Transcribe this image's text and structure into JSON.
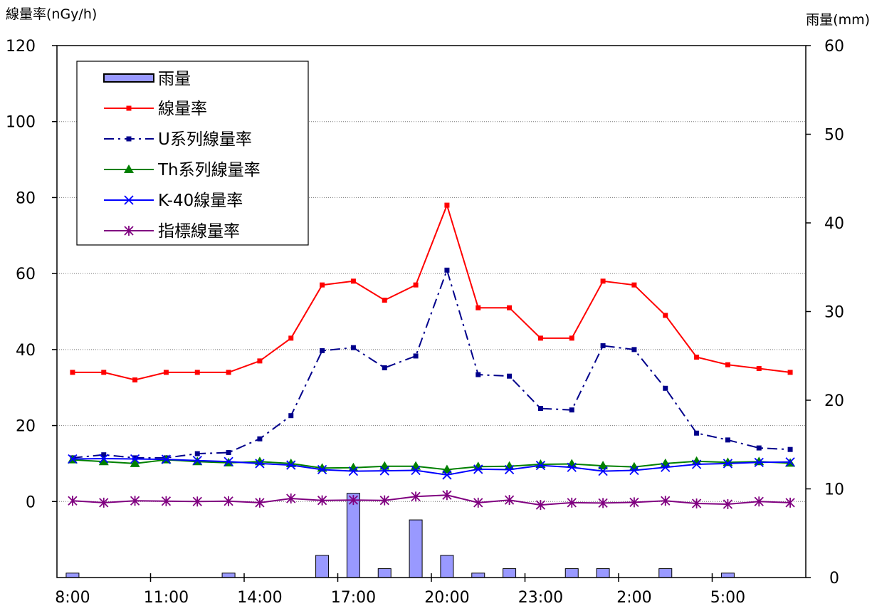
{
  "chart_data": {
    "type": "line",
    "ylabel_left": "線量率(nGy/h)",
    "ylabel_right": "雨量(mm)",
    "left_ticks": [
      "120",
      "100",
      "80",
      "60",
      "40",
      "20",
      "0"
    ],
    "right_ticks": [
      "60",
      "50",
      "40",
      "30",
      "20",
      "10",
      "0"
    ],
    "left_axis_values": [
      120,
      100,
      80,
      60,
      40,
      20,
      0
    ],
    "right_axis_values": [
      60,
      50,
      40,
      30,
      20,
      10,
      0
    ],
    "x_tick_labels": [
      "8:00",
      "11:00",
      "14:00",
      "17:00",
      "20:00",
      "23:00",
      "2:00",
      "5:00"
    ],
    "x_tick_label_indices": [
      0,
      3,
      6,
      9,
      12,
      15,
      18,
      21
    ],
    "points": 24,
    "series": [
      {
        "name": "線量率",
        "color": "#ff0000",
        "values": [
          34,
          34,
          32,
          34,
          34,
          34,
          37,
          43,
          57,
          58,
          53,
          57,
          78,
          51,
          51,
          43,
          43,
          58,
          57,
          49,
          38,
          36,
          35,
          34
        ]
      },
      {
        "name": "U系列線量率",
        "color": "#00008b",
        "values": [
          11.5,
          12.3,
          11.5,
          11.5,
          12.6,
          12.9,
          16.5,
          22.6,
          39.7,
          40.5,
          35.2,
          38.3,
          60.9,
          33.4,
          33.0,
          24.5,
          24.1,
          41.0,
          40.0,
          29.8,
          18.0,
          16.2,
          14.1,
          13.7
        ]
      },
      {
        "name": "Th系列線量率",
        "color": "#008000",
        "values": [
          11.0,
          10.5,
          10.0,
          11.0,
          10.5,
          10.2,
          10.5,
          10.0,
          8.8,
          8.9,
          9.3,
          9.3,
          8.4,
          9.2,
          9.3,
          9.8,
          9.9,
          9.4,
          9.1,
          10.0,
          10.6,
          10.3,
          10.5,
          10.1
        ]
      },
      {
        "name": "K-40線量率",
        "color": "#0000ff",
        "values": [
          11.2,
          11.3,
          11.2,
          11.1,
          10.8,
          10.5,
          10.0,
          9.6,
          8.4,
          8.0,
          8.1,
          8.2,
          7.0,
          8.5,
          8.4,
          9.5,
          9.0,
          8.0,
          8.2,
          9.0,
          9.8,
          10.0,
          10.3,
          10.4
        ]
      },
      {
        "name": "指標線量率",
        "color": "#800080",
        "values": [
          0.2,
          -0.3,
          0.2,
          0.1,
          0.0,
          0.1,
          -0.3,
          0.8,
          0.3,
          0.4,
          0.3,
          1.3,
          1.7,
          -0.3,
          0.4,
          -0.9,
          -0.3,
          -0.4,
          -0.2,
          0.2,
          -0.5,
          -0.7,
          0.0,
          -0.3
        ]
      }
    ],
    "rain": {
      "name": "雨量",
      "color": "#9999ff",
      "values": [
        0.5,
        0,
        0,
        0,
        0,
        0.5,
        0,
        0,
        2.5,
        9.5,
        1.0,
        6.5,
        2.5,
        0.5,
        1.0,
        0,
        1.0,
        1.0,
        0,
        1.0,
        0,
        0.5,
        0,
        0
      ]
    },
    "legend": [
      "雨量",
      "線量率",
      "U系列線量率",
      "Th系列線量率",
      "K-40線量率",
      "指標線量率"
    ],
    "legend_position": "top-left",
    "gridlines": "horizontal dotted"
  }
}
